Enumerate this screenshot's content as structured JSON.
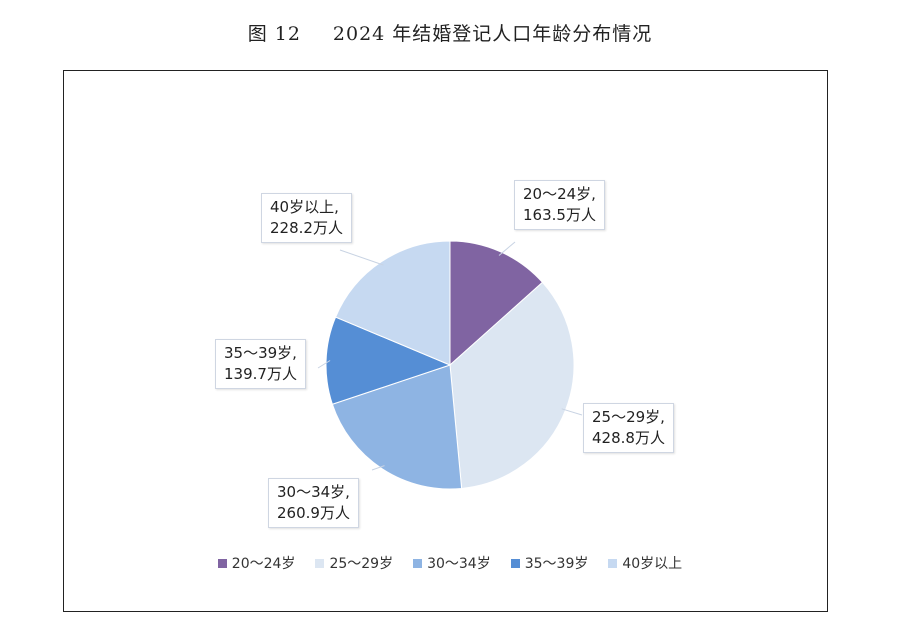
{
  "title": {
    "number": "图 12",
    "text": "2024 年结婚登记人口年龄分布情况"
  },
  "chart_data": {
    "type": "pie",
    "unit": "万人",
    "categories": [
      "20～24岁",
      "25～29岁",
      "30～34岁",
      "35～39岁",
      "40岁以上"
    ],
    "values": [
      163.5,
      428.8,
      260.9,
      139.7,
      228.2
    ],
    "colors": [
      "#8064a2",
      "#dce6f2",
      "#8eb4e3",
      "#558ed5",
      "#c6d9f1"
    ],
    "data_labels": [
      {
        "line1": "20～24岁,",
        "line2": "163.5万人"
      },
      {
        "line1": "25～29岁,",
        "line2": "428.8万人"
      },
      {
        "line1": "30～34岁,",
        "line2": "260.9万人"
      },
      {
        "line1": "35～39岁,",
        "line2": "139.7万人"
      },
      {
        "line1": "40岁以上,",
        "line2": "228.2万人"
      }
    ],
    "legend_position": "bottom"
  },
  "legend": [
    {
      "label": "20～24岁",
      "color": "#8064a2"
    },
    {
      "label": "25～29岁",
      "color": "#dce6f2"
    },
    {
      "label": "30～34岁",
      "color": "#8eb4e3"
    },
    {
      "label": "35～39岁",
      "color": "#558ed5"
    },
    {
      "label": "40岁以上",
      "color": "#c6d9f1"
    }
  ]
}
